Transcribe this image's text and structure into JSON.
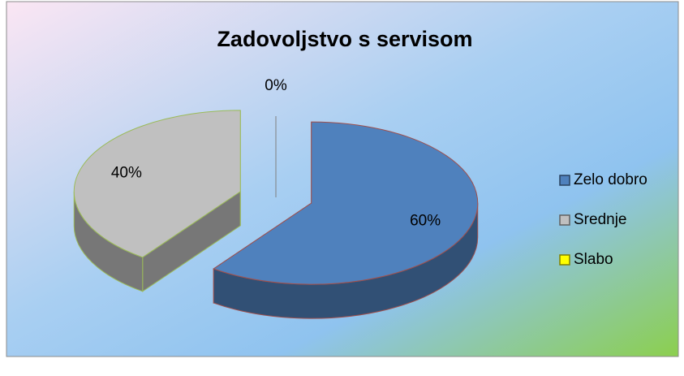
{
  "chart_data": {
    "type": "pie",
    "title": "Zadovoljstvo s servisom",
    "categories": [
      "Zelo dobro",
      "Srednje",
      "Slabo"
    ],
    "values": [
      60,
      40,
      0
    ],
    "value_labels": [
      "60%",
      "40%",
      "0%"
    ],
    "colors": [
      "#4f81bd",
      "#c0c0c0",
      "#ffff00"
    ],
    "legend": "right"
  }
}
